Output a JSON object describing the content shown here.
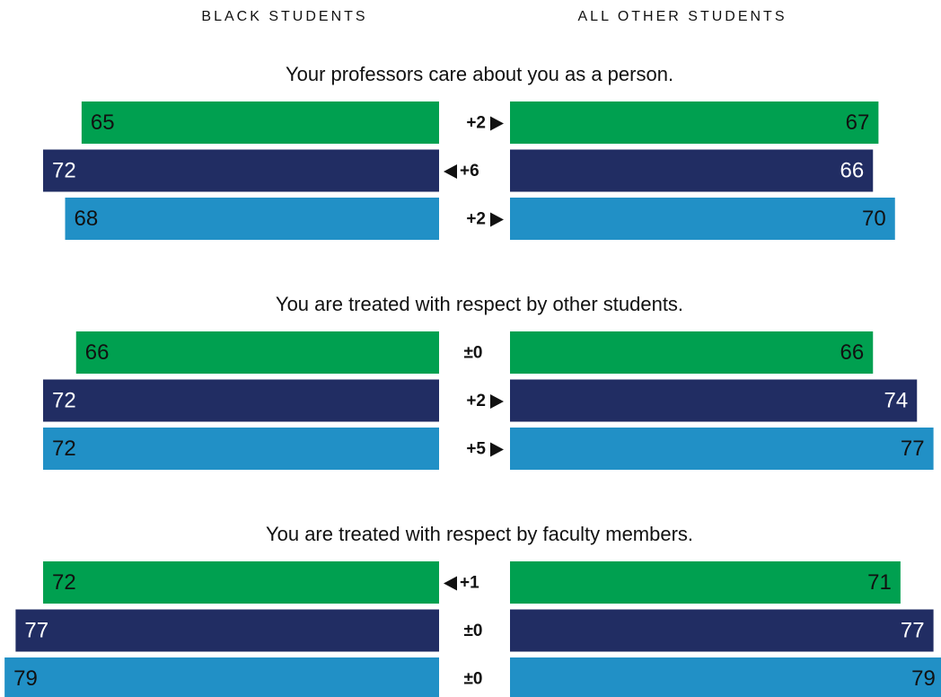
{
  "chart_data": {
    "type": "diverging-bar",
    "left_label": "BLACK STUDENTS",
    "right_label": "ALL OTHER STUDENTS",
    "colors": [
      "#00a050",
      "#212d63",
      "#2190c6"
    ],
    "xlim": [
      0,
      80
    ],
    "groups": [
      {
        "title": "Your professors care about you as a person.",
        "left": [
          65,
          72,
          68
        ],
        "right": [
          67,
          66,
          70
        ],
        "differences": [
          "+2",
          "+6",
          "+2"
        ]
      },
      {
        "title": "You are treated with respect by other students.",
        "left": [
          66,
          72,
          72
        ],
        "right": [
          66,
          74,
          77
        ],
        "differences": [
          "±0",
          "+2",
          "+5"
        ]
      },
      {
        "title": "You are treated with respect by faculty members.",
        "left": [
          72,
          77,
          79
        ],
        "right": [
          71,
          77,
          79
        ],
        "differences": [
          "+1",
          "±0",
          "±0"
        ]
      }
    ]
  }
}
